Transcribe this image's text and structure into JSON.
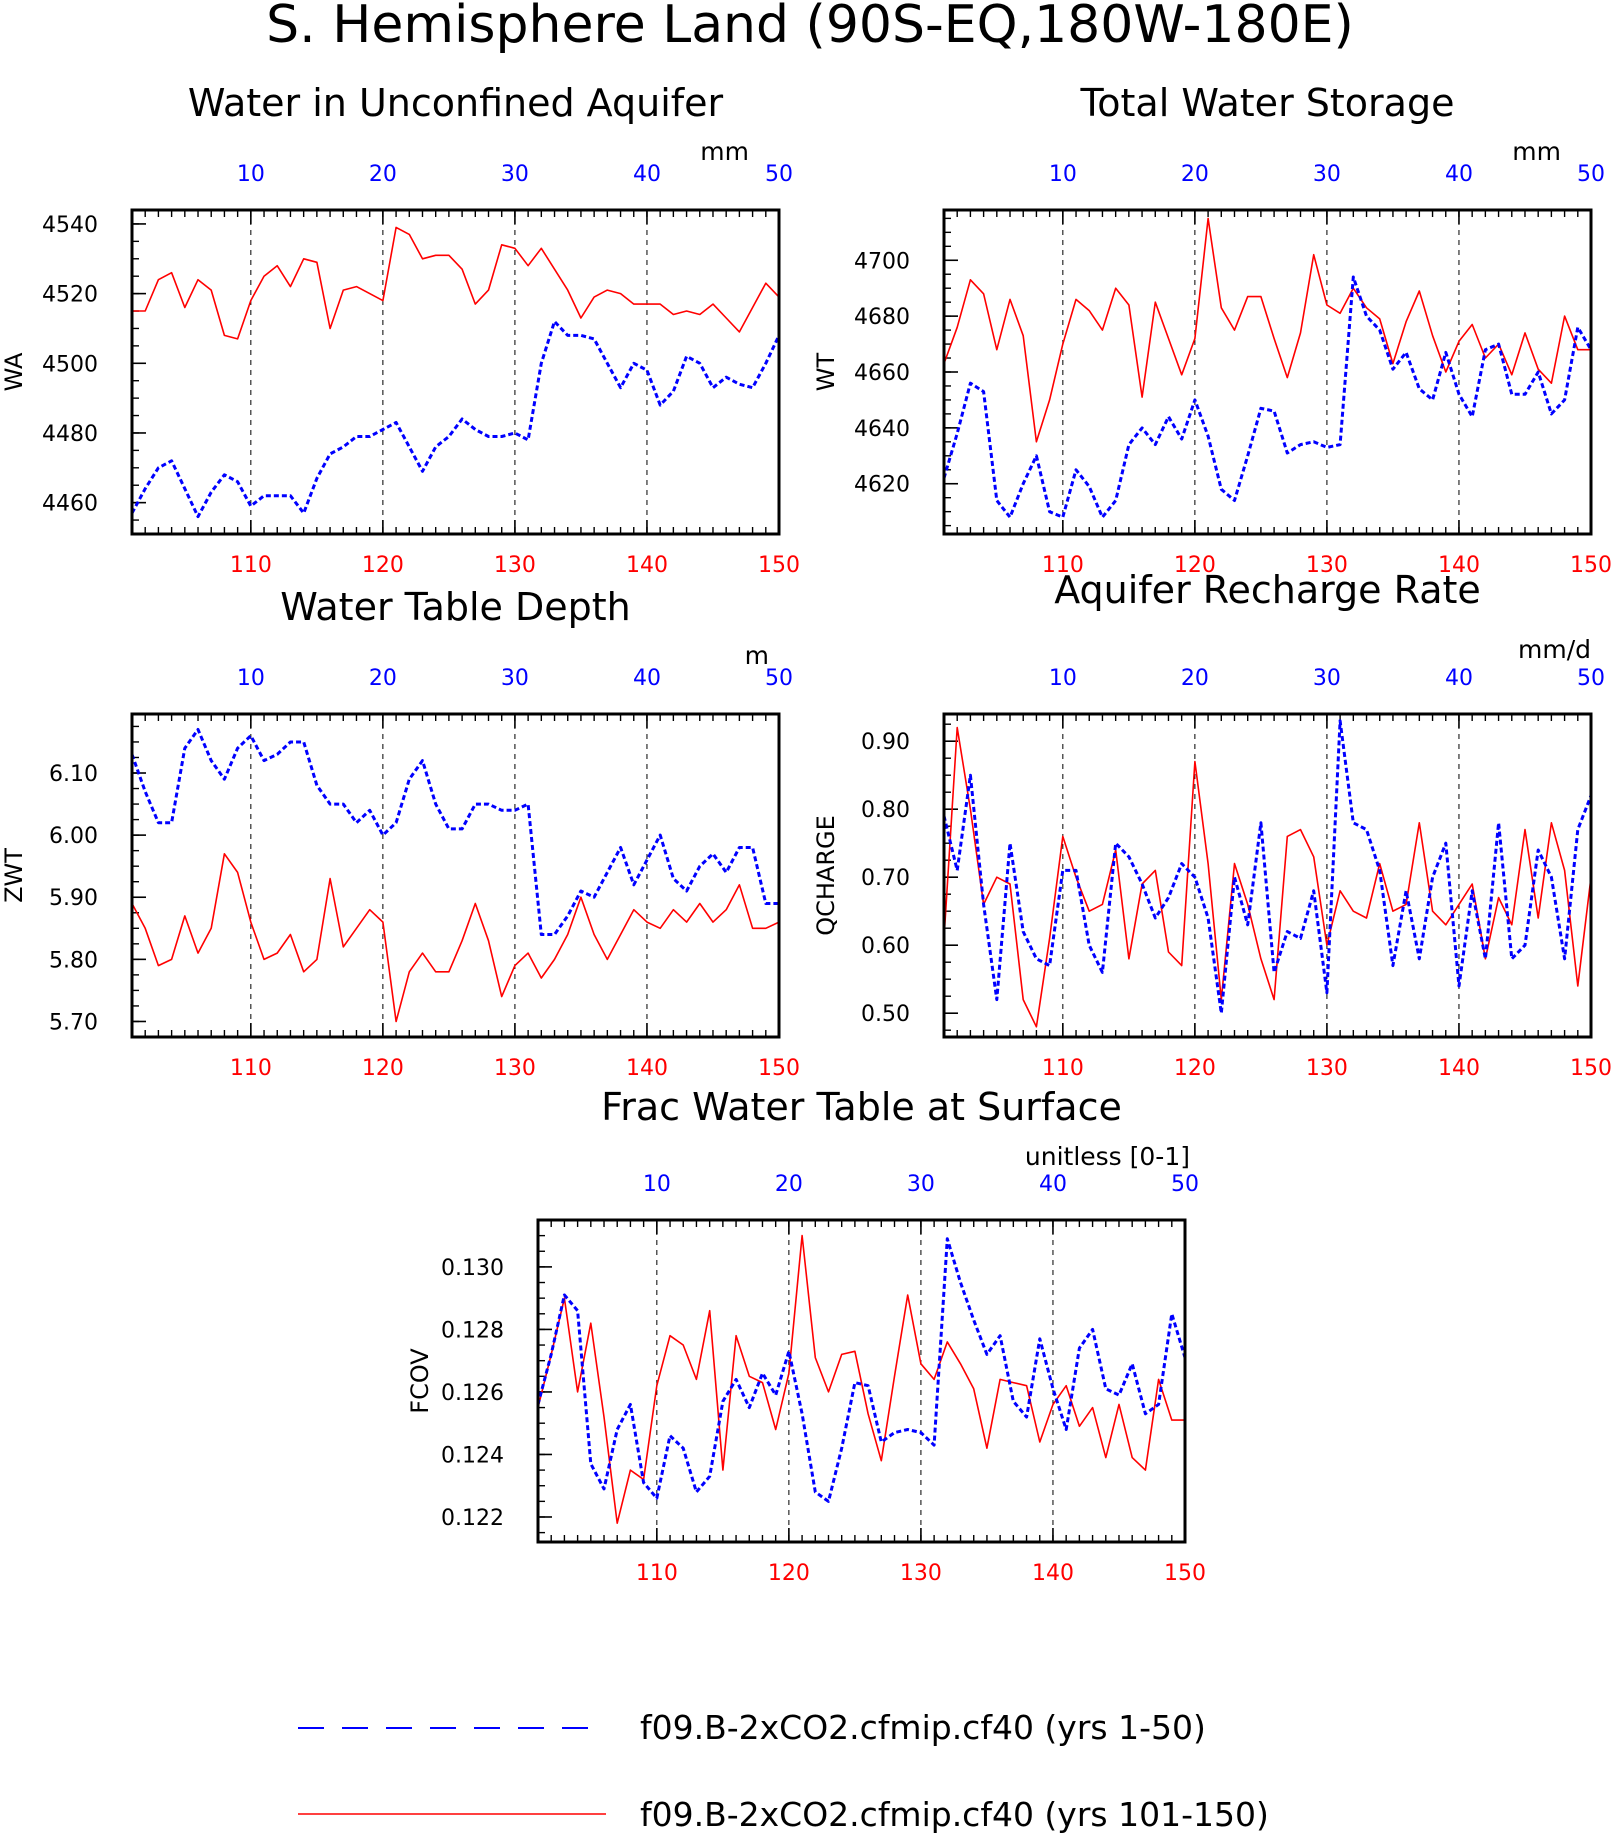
{
  "figure": {
    "title": "S. Hemisphere Land (90S-EQ,180W-180E)",
    "legend": [
      {
        "label": "f09.B-2xCO2.cfmip.cf40 (yrs 1-50)",
        "color": "#0000ff",
        "style": "dashed"
      },
      {
        "label": "f09.B-2xCO2.cfmip.cf40 (yrs 101-150)",
        "color": "#ff0000",
        "style": "solid"
      }
    ]
  },
  "colors": {
    "top_axis": "#0000ff",
    "bottom_axis": "#ff0000",
    "frame": "#000000"
  },
  "chart_data": [
    {
      "type": "line",
      "title": "Water in Unconfined Aquifer",
      "units": "mm",
      "ylabel": "WA",
      "ylim": [
        4451,
        4544
      ],
      "yticks": [
        4460,
        4480,
        4500,
        4520,
        4540
      ],
      "yticklabels": [
        "4460",
        "4480",
        "4500",
        "4520",
        "4540"
      ],
      "x_bottom": {
        "range": [
          101,
          150
        ],
        "ticks": [
          110,
          120,
          130,
          140,
          150
        ],
        "ticklabels": [
          "110",
          "120",
          "130",
          "140",
          "150"
        ]
      },
      "x_top": {
        "range": [
          1,
          50
        ],
        "ticks": [
          10,
          20,
          30,
          40,
          50
        ],
        "ticklabels": [
          "10",
          "20",
          "30",
          "40",
          "50"
        ]
      },
      "series": [
        {
          "values": [
            4457,
            4464,
            4470,
            4472,
            4464,
            4456,
            4463,
            4468,
            4466,
            4459,
            4462,
            4462,
            4462,
            4457,
            4467,
            4474,
            4476,
            4479,
            4479,
            4481,
            4483,
            4476,
            4469,
            4476,
            4479,
            4484,
            4481,
            4479,
            4479,
            4480,
            4478,
            4500,
            4512,
            4508,
            4508,
            4507,
            4500,
            4493,
            4500,
            4498,
            4488,
            4492,
            4502,
            4500,
            4493,
            4496,
            4494,
            4493,
            4500,
            4508
          ]
        },
        {
          "values": [
            4515,
            4515,
            4524,
            4526,
            4516,
            4524,
            4521,
            4508,
            4507,
            4518,
            4525,
            4528,
            4522,
            4530,
            4529,
            4510,
            4521,
            4522,
            4520,
            4518,
            4539,
            4537,
            4530,
            4531,
            4531,
            4527,
            4517,
            4521,
            4534,
            4533,
            4528,
            4533,
            4527,
            4521,
            4513,
            4519,
            4521,
            4520,
            4517,
            4517,
            4517,
            4514,
            4515,
            4514,
            4517,
            4513,
            4509,
            4516,
            4523,
            4519
          ]
        }
      ]
    },
    {
      "type": "line",
      "title": "Total Water Storage",
      "units": "mm",
      "ylabel": "WT",
      "ylim": [
        4602,
        4718
      ],
      "yticks": [
        4620,
        4640,
        4660,
        4680,
        4700
      ],
      "yticklabels": [
        "4620",
        "4640",
        "4660",
        "4680",
        "4700"
      ],
      "x_bottom": {
        "range": [
          101,
          150
        ],
        "ticks": [
          110,
          120,
          130,
          140,
          150
        ],
        "ticklabels": [
          "110",
          "120",
          "130",
          "140",
          "150"
        ]
      },
      "x_top": {
        "range": [
          1,
          50
        ],
        "ticks": [
          10,
          20,
          30,
          40,
          50
        ],
        "ticklabels": [
          "10",
          "20",
          "30",
          "40",
          "50"
        ]
      },
      "series": [
        {
          "values": [
            4622,
            4638,
            4656,
            4653,
            4614,
            4608,
            4620,
            4630,
            4610,
            4608,
            4625,
            4619,
            4608,
            4614,
            4634,
            4640,
            4634,
            4644,
            4636,
            4650,
            4637,
            4618,
            4614,
            4630,
            4647,
            4646,
            4631,
            4634,
            4635,
            4633,
            4634,
            4694,
            4680,
            4675,
            4661,
            4667,
            4654,
            4650,
            4667,
            4652,
            4644,
            4668,
            4670,
            4652,
            4652,
            4660,
            4645,
            4650,
            4676,
            4668
          ]
        },
        {
          "values": [
            4663,
            4676,
            4693,
            4688,
            4668,
            4686,
            4673,
            4635,
            4650,
            4670,
            4686,
            4682,
            4675,
            4690,
            4684,
            4651,
            4685,
            4672,
            4659,
            4672,
            4715,
            4683,
            4675,
            4687,
            4687,
            4672,
            4658,
            4674,
            4702,
            4684,
            4681,
            4690,
            4683,
            4679,
            4663,
            4678,
            4689,
            4673,
            4660,
            4671,
            4677,
            4665,
            4670,
            4659,
            4674,
            4661,
            4656,
            4680,
            4668,
            4668
          ]
        }
      ]
    },
    {
      "type": "line",
      "title": "Water Table Depth",
      "units": "m",
      "ylabel": "ZWT",
      "ylim": [
        5.675,
        6.195
      ],
      "yticks": [
        5.7,
        5.8,
        5.9,
        6.0,
        6.1
      ],
      "yticklabels": [
        "5.70",
        "5.80",
        "5.90",
        "6.00",
        "6.10"
      ],
      "x_bottom": {
        "range": [
          101,
          150
        ],
        "ticks": [
          110,
          120,
          130,
          140,
          150
        ],
        "ticklabels": [
          "110",
          "120",
          "130",
          "140",
          "150"
        ]
      },
      "x_top": {
        "range": [
          1,
          50
        ],
        "ticks": [
          10,
          20,
          30,
          40,
          50
        ],
        "ticklabels": [
          "10",
          "20",
          "30",
          "40",
          "50"
        ]
      },
      "series": [
        {
          "values": [
            6.13,
            6.07,
            6.02,
            6.02,
            6.14,
            6.17,
            6.12,
            6.09,
            6.14,
            6.16,
            6.12,
            6.13,
            6.15,
            6.15,
            6.08,
            6.05,
            6.05,
            6.02,
            6.04,
            6.0,
            6.02,
            6.09,
            6.12,
            6.05,
            6.01,
            6.01,
            6.05,
            6.05,
            6.04,
            6.04,
            6.05,
            5.84,
            5.84,
            5.87,
            5.91,
            5.9,
            5.94,
            5.98,
            5.92,
            5.96,
            6.0,
            5.93,
            5.91,
            5.95,
            5.97,
            5.94,
            5.98,
            5.98,
            5.89,
            5.89
          ]
        },
        {
          "values": [
            5.89,
            5.85,
            5.79,
            5.8,
            5.87,
            5.81,
            5.85,
            5.97,
            5.94,
            5.86,
            5.8,
            5.81,
            5.84,
            5.78,
            5.8,
            5.93,
            5.82,
            5.85,
            5.88,
            5.86,
            5.7,
            5.78,
            5.81,
            5.78,
            5.78,
            5.83,
            5.89,
            5.83,
            5.74,
            5.79,
            5.81,
            5.77,
            5.8,
            5.84,
            5.9,
            5.84,
            5.8,
            5.84,
            5.88,
            5.86,
            5.85,
            5.88,
            5.86,
            5.89,
            5.86,
            5.88,
            5.92,
            5.85,
            5.85,
            5.86
          ]
        }
      ]
    },
    {
      "type": "line",
      "title": "Aquifer Recharge Rate",
      "units": "mm/d",
      "ylabel": "QCHARGE",
      "ylim": [
        0.465,
        0.94
      ],
      "yticks": [
        0.5,
        0.6,
        0.7,
        0.8,
        0.9
      ],
      "yticklabels": [
        "0.50",
        "0.60",
        "0.70",
        "0.80",
        "0.90"
      ],
      "x_bottom": {
        "range": [
          101,
          150
        ],
        "ticks": [
          110,
          120,
          130,
          140,
          150
        ],
        "ticklabels": [
          "110",
          "120",
          "130",
          "140",
          "150"
        ]
      },
      "x_top": {
        "range": [
          1,
          50
        ],
        "ticks": [
          10,
          20,
          30,
          40,
          50
        ],
        "ticklabels": [
          "10",
          "20",
          "30",
          "40",
          "50"
        ]
      },
      "series": [
        {
          "values": [
            0.79,
            0.71,
            0.85,
            0.66,
            0.52,
            0.75,
            0.62,
            0.58,
            0.57,
            0.71,
            0.71,
            0.6,
            0.56,
            0.75,
            0.73,
            0.69,
            0.64,
            0.67,
            0.72,
            0.7,
            0.64,
            0.5,
            0.7,
            0.63,
            0.78,
            0.56,
            0.62,
            0.61,
            0.68,
            0.53,
            0.93,
            0.78,
            0.77,
            0.71,
            0.57,
            0.68,
            0.58,
            0.7,
            0.75,
            0.54,
            0.68,
            0.58,
            0.78,
            0.58,
            0.6,
            0.74,
            0.7,
            0.58,
            0.77,
            0.82
          ]
        },
        {
          "values": [
            0.61,
            0.92,
            0.8,
            0.66,
            0.7,
            0.69,
            0.52,
            0.48,
            0.61,
            0.76,
            0.7,
            0.65,
            0.66,
            0.74,
            0.58,
            0.69,
            0.71,
            0.59,
            0.57,
            0.87,
            0.72,
            0.52,
            0.72,
            0.66,
            0.58,
            0.52,
            0.76,
            0.77,
            0.73,
            0.6,
            0.68,
            0.65,
            0.64,
            0.72,
            0.65,
            0.66,
            0.78,
            0.65,
            0.63,
            0.66,
            0.69,
            0.58,
            0.67,
            0.63,
            0.77,
            0.64,
            0.78,
            0.71,
            0.54,
            0.7
          ]
        }
      ]
    },
    {
      "type": "line",
      "title": "Frac Water Table at Surface",
      "units": "unitless [0-1]",
      "ylabel": "FCOV",
      "ylim": [
        0.1212,
        0.1315
      ],
      "yticks": [
        0.122,
        0.124,
        0.126,
        0.128,
        0.13
      ],
      "yticklabels": [
        "0.122",
        "0.124",
        "0.126",
        "0.128",
        "0.130"
      ],
      "x_bottom": {
        "range": [
          101,
          150
        ],
        "ticks": [
          110,
          120,
          130,
          140,
          150
        ],
        "ticklabels": [
          "110",
          "120",
          "130",
          "140",
          "150"
        ]
      },
      "x_top": {
        "range": [
          1,
          50
        ],
        "ticks": [
          10,
          20,
          30,
          40,
          50
        ],
        "ticklabels": [
          "10",
          "20",
          "30",
          "40",
          "50"
        ]
      },
      "series": [
        {
          "values": [
            0.1256,
            0.1272,
            0.1291,
            0.1286,
            0.1237,
            0.1229,
            0.1248,
            0.1256,
            0.1231,
            0.1226,
            0.1246,
            0.1242,
            0.1228,
            0.1233,
            0.1257,
            0.1264,
            0.1255,
            0.1266,
            0.1259,
            0.1273,
            0.1253,
            0.1228,
            0.1225,
            0.1242,
            0.1263,
            0.1262,
            0.1244,
            0.1247,
            0.1248,
            0.1247,
            0.1243,
            0.1309,
            0.1295,
            0.1283,
            0.1272,
            0.1278,
            0.1257,
            0.1252,
            0.1277,
            0.1261,
            0.1248,
            0.1274,
            0.128,
            0.1261,
            0.1259,
            0.1269,
            0.1253,
            0.1256,
            0.1285,
            0.1271
          ]
        },
        {
          "values": [
            0.1255,
            0.1272,
            0.129,
            0.126,
            0.1282,
            0.1252,
            0.1218,
            0.1235,
            0.1232,
            0.1262,
            0.1278,
            0.1275,
            0.1264,
            0.1286,
            0.1235,
            0.1278,
            0.1265,
            0.1263,
            0.1248,
            0.1266,
            0.131,
            0.1271,
            0.126,
            0.1272,
            0.1273,
            0.1253,
            0.1238,
            0.1265,
            0.1291,
            0.1269,
            0.1264,
            0.1276,
            0.1269,
            0.1261,
            0.1242,
            0.1264,
            0.1263,
            0.1262,
            0.1244,
            0.1256,
            0.1262,
            0.1249,
            0.1255,
            0.1239,
            0.1256,
            0.1239,
            0.1235,
            0.1264,
            0.1251,
            0.1251
          ]
        }
      ]
    }
  ]
}
